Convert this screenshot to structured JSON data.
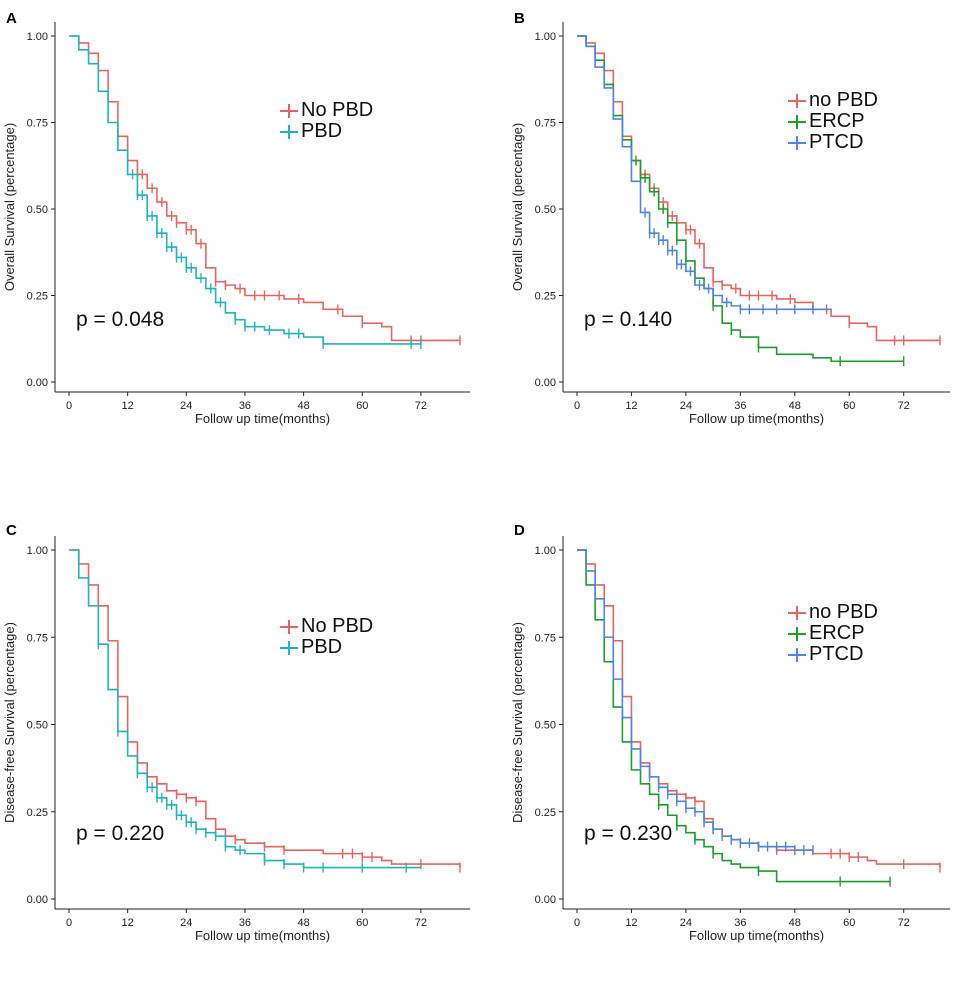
{
  "chart_data": [
    {
      "type": "line",
      "panel": "A",
      "xlabel": "Follow up time(months)",
      "ylabel": "Overall Survival (percentage)",
      "xticks": [
        0,
        12,
        24,
        36,
        48,
        60,
        72
      ],
      "yticks": [
        "0.00",
        "0.25",
        "0.50",
        "0.75",
        "1.00"
      ],
      "xlim": [
        0,
        80
      ],
      "ylim": [
        0,
        1
      ],
      "pvalue": "p = 0.048",
      "legend": [
        "No PBD",
        "PBD"
      ],
      "series": [
        {
          "name": "No PBD",
          "color": "#E8655F",
          "x": [
            0,
            2,
            4,
            6,
            8,
            10,
            12,
            14,
            16,
            18,
            20,
            22,
            24,
            26,
            28,
            30,
            32,
            34,
            36,
            40,
            44,
            48,
            52,
            56,
            60,
            64,
            66,
            72,
            80
          ],
          "y": [
            1.0,
            0.98,
            0.95,
            0.9,
            0.81,
            0.71,
            0.64,
            0.6,
            0.56,
            0.52,
            0.48,
            0.46,
            0.44,
            0.4,
            0.33,
            0.29,
            0.28,
            0.27,
            0.25,
            0.25,
            0.24,
            0.23,
            0.21,
            0.19,
            0.17,
            0.16,
            0.12,
            0.12,
            0.12
          ],
          "censor_x": [
            14,
            15,
            17,
            19,
            21,
            22,
            24,
            25,
            27,
            30,
            32,
            35,
            38,
            40,
            43,
            47,
            55,
            60,
            70,
            72,
            80
          ]
        },
        {
          "name": "PBD",
          "color": "#1FB5BD",
          "x": [
            0,
            2,
            4,
            6,
            8,
            10,
            12,
            14,
            16,
            18,
            20,
            22,
            24,
            26,
            28,
            30,
            32,
            34,
            36,
            40,
            44,
            48,
            52,
            56,
            60,
            64,
            68,
            72
          ],
          "y": [
            1.0,
            0.96,
            0.92,
            0.84,
            0.75,
            0.67,
            0.6,
            0.54,
            0.48,
            0.43,
            0.39,
            0.36,
            0.33,
            0.3,
            0.27,
            0.23,
            0.2,
            0.18,
            0.16,
            0.15,
            0.14,
            0.13,
            0.11,
            0.11,
            0.11,
            0.11,
            0.11,
            0.11
          ],
          "censor_x": [
            13,
            14,
            15,
            16,
            17,
            18,
            19,
            20,
            21,
            22,
            23,
            24,
            25,
            27,
            29,
            31,
            34,
            36,
            38,
            41,
            45,
            47,
            52,
            70,
            72
          ]
        }
      ]
    },
    {
      "type": "line",
      "panel": "B",
      "xlabel": "Follow up time(months)",
      "ylabel": "Overall Survival (percentage)",
      "xticks": [
        0,
        12,
        24,
        36,
        48,
        60,
        72
      ],
      "yticks": [
        "0.00",
        "0.25",
        "0.50",
        "0.75",
        "1.00"
      ],
      "xlim": [
        0,
        80
      ],
      "ylim": [
        0,
        1
      ],
      "pvalue": "p = 0.140",
      "legend": [
        "no PBD",
        "ERCP",
        "PTCD"
      ],
      "series": [
        {
          "name": "no PBD",
          "color": "#E8655F",
          "x": [
            0,
            2,
            4,
            6,
            8,
            10,
            12,
            14,
            16,
            18,
            20,
            22,
            24,
            26,
            28,
            30,
            32,
            34,
            36,
            40,
            44,
            48,
            52,
            56,
            60,
            64,
            66,
            72,
            80
          ],
          "y": [
            1.0,
            0.98,
            0.95,
            0.9,
            0.81,
            0.71,
            0.64,
            0.6,
            0.56,
            0.52,
            0.48,
            0.46,
            0.44,
            0.4,
            0.33,
            0.29,
            0.28,
            0.27,
            0.25,
            0.25,
            0.24,
            0.23,
            0.21,
            0.19,
            0.17,
            0.16,
            0.12,
            0.12,
            0.12
          ],
          "censor_x": [
            14,
            15,
            17,
            19,
            21,
            22,
            24,
            25,
            27,
            30,
            32,
            35,
            38,
            40,
            43,
            47,
            55,
            60,
            70,
            72,
            80
          ]
        },
        {
          "name": "ERCP",
          "color": "#1E9E2B",
          "x": [
            0,
            2,
            4,
            6,
            8,
            10,
            12,
            14,
            16,
            18,
            20,
            22,
            24,
            26,
            28,
            30,
            32,
            34,
            36,
            40,
            44,
            48,
            52,
            56,
            60,
            64,
            68,
            72
          ],
          "y": [
            1.0,
            0.97,
            0.93,
            0.86,
            0.77,
            0.7,
            0.64,
            0.59,
            0.55,
            0.5,
            0.46,
            0.41,
            0.35,
            0.3,
            0.27,
            0.22,
            0.17,
            0.15,
            0.13,
            0.1,
            0.08,
            0.08,
            0.07,
            0.06,
            0.06,
            0.06,
            0.06,
            0.06
          ],
          "censor_x": [
            13,
            14,
            15,
            17,
            19,
            20,
            22,
            24,
            26,
            30,
            34,
            40,
            58,
            72
          ]
        },
        {
          "name": "PTCD",
          "color": "#4E86E4",
          "x": [
            0,
            2,
            4,
            6,
            8,
            10,
            12,
            14,
            16,
            18,
            20,
            22,
            24,
            26,
            28,
            30,
            32,
            34,
            36,
            40,
            44,
            48,
            52,
            56
          ],
          "y": [
            1.0,
            0.97,
            0.91,
            0.85,
            0.76,
            0.68,
            0.58,
            0.49,
            0.43,
            0.41,
            0.38,
            0.34,
            0.32,
            0.28,
            0.27,
            0.25,
            0.23,
            0.22,
            0.21,
            0.21,
            0.21,
            0.21,
            0.21,
            0.21
          ],
          "censor_x": [
            15,
            16,
            17,
            18,
            19,
            20,
            21,
            22,
            23,
            25,
            27,
            29,
            33,
            36,
            38,
            41,
            44,
            48,
            52
          ]
        }
      ]
    },
    {
      "type": "line",
      "panel": "C",
      "xlabel": "Follow up time(months)",
      "ylabel": "Disease-free Survival (percentage)",
      "xticks": [
        0,
        12,
        24,
        36,
        48,
        60,
        72
      ],
      "yticks": [
        "0.00",
        "0.25",
        "0.50",
        "0.75",
        "1.00"
      ],
      "xlim": [
        0,
        80
      ],
      "ylim": [
        0,
        1
      ],
      "pvalue": "p = 0.220",
      "legend": [
        "No PBD",
        "PBD"
      ],
      "series": [
        {
          "name": "No PBD",
          "color": "#E8655F",
          "x": [
            0,
            2,
            4,
            6,
            8,
            10,
            12,
            14,
            16,
            18,
            20,
            22,
            24,
            26,
            28,
            30,
            32,
            34,
            36,
            40,
            44,
            48,
            52,
            56,
            60,
            64,
            66,
            72,
            80
          ],
          "y": [
            1.0,
            0.96,
            0.9,
            0.84,
            0.74,
            0.58,
            0.45,
            0.39,
            0.35,
            0.33,
            0.31,
            0.3,
            0.29,
            0.28,
            0.23,
            0.2,
            0.18,
            0.17,
            0.16,
            0.15,
            0.14,
            0.14,
            0.13,
            0.13,
            0.12,
            0.11,
            0.1,
            0.1,
            0.09
          ],
          "censor_x": [
            6,
            14,
            18,
            22,
            24,
            26,
            30,
            34,
            40,
            44,
            56,
            58,
            60,
            62,
            72,
            80
          ]
        },
        {
          "name": "PBD",
          "color": "#1FB5BD",
          "x": [
            0,
            2,
            4,
            6,
            8,
            10,
            12,
            14,
            16,
            18,
            20,
            22,
            24,
            26,
            28,
            30,
            32,
            34,
            36,
            40,
            44,
            48,
            52,
            56,
            60,
            64,
            68,
            72
          ],
          "y": [
            1.0,
            0.92,
            0.84,
            0.73,
            0.6,
            0.48,
            0.41,
            0.36,
            0.32,
            0.29,
            0.27,
            0.24,
            0.22,
            0.2,
            0.19,
            0.18,
            0.15,
            0.14,
            0.13,
            0.11,
            0.1,
            0.09,
            0.09,
            0.09,
            0.09,
            0.09,
            0.09,
            0.09
          ],
          "censor_x": [
            6,
            10,
            14,
            16,
            17,
            18,
            19,
            20,
            21,
            22,
            23,
            24,
            25,
            26,
            28,
            30,
            32,
            35,
            40,
            44,
            48,
            52,
            60,
            69
          ]
        }
      ]
    },
    {
      "type": "line",
      "panel": "D",
      "xlabel": "Follow up time(months)",
      "ylabel": "Disease-free Survival (percentage)",
      "xticks": [
        0,
        12,
        24,
        36,
        48,
        60,
        72
      ],
      "yticks": [
        "0.00",
        "0.25",
        "0.50",
        "0.75",
        "1.00"
      ],
      "xlim": [
        0,
        80
      ],
      "ylim": [
        0,
        1
      ],
      "pvalue": "p = 0.230",
      "legend": [
        "no PBD",
        "ERCP",
        "PTCD"
      ],
      "series": [
        {
          "name": "no PBD",
          "color": "#E8655F",
          "x": [
            0,
            2,
            4,
            6,
            8,
            10,
            12,
            14,
            16,
            18,
            20,
            22,
            24,
            26,
            28,
            30,
            32,
            34,
            36,
            40,
            44,
            48,
            52,
            56,
            60,
            64,
            66,
            72,
            80
          ],
          "y": [
            1.0,
            0.96,
            0.9,
            0.84,
            0.74,
            0.58,
            0.45,
            0.39,
            0.35,
            0.33,
            0.31,
            0.3,
            0.29,
            0.28,
            0.23,
            0.2,
            0.18,
            0.17,
            0.16,
            0.15,
            0.14,
            0.14,
            0.13,
            0.13,
            0.12,
            0.11,
            0.1,
            0.1,
            0.09
          ],
          "censor_x": [
            6,
            14,
            18,
            22,
            24,
            26,
            30,
            34,
            40,
            44,
            56,
            58,
            60,
            62,
            72,
            80
          ]
        },
        {
          "name": "ERCP",
          "color": "#1E9E2B",
          "x": [
            0,
            2,
            4,
            6,
            8,
            10,
            12,
            14,
            16,
            18,
            20,
            22,
            24,
            26,
            28,
            30,
            32,
            34,
            36,
            40,
            44,
            48,
            52,
            56,
            60,
            64,
            68,
            69
          ],
          "y": [
            1.0,
            0.9,
            0.8,
            0.68,
            0.55,
            0.45,
            0.37,
            0.33,
            0.3,
            0.27,
            0.24,
            0.21,
            0.19,
            0.17,
            0.15,
            0.13,
            0.11,
            0.1,
            0.09,
            0.08,
            0.05,
            0.05,
            0.05,
            0.05,
            0.05,
            0.05,
            0.05,
            0.05
          ],
          "censor_x": [
            18,
            22,
            26,
            30,
            40,
            58,
            69
          ]
        },
        {
          "name": "PTCD",
          "color": "#4E86E4",
          "x": [
            0,
            2,
            4,
            6,
            8,
            10,
            12,
            14,
            16,
            18,
            20,
            22,
            24,
            26,
            28,
            30,
            32,
            34,
            36,
            40,
            44,
            48,
            52
          ],
          "y": [
            1.0,
            0.94,
            0.86,
            0.75,
            0.63,
            0.52,
            0.43,
            0.38,
            0.35,
            0.32,
            0.3,
            0.28,
            0.26,
            0.25,
            0.22,
            0.2,
            0.18,
            0.17,
            0.16,
            0.15,
            0.15,
            0.14,
            0.14
          ],
          "censor_x": [
            14,
            16,
            18,
            20,
            22,
            24,
            26,
            28,
            30,
            32,
            34,
            36,
            38,
            40,
            42,
            44,
            46,
            48,
            50,
            52
          ]
        }
      ]
    }
  ]
}
